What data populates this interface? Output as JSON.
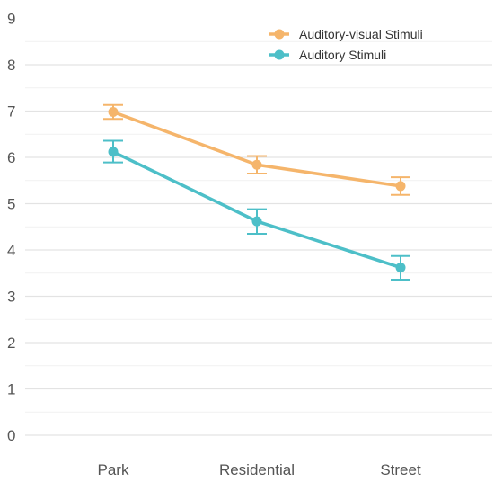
{
  "chart_data": {
    "type": "line",
    "categories": [
      "Park",
      "Residential",
      "Street"
    ],
    "ylim": [
      0,
      9
    ],
    "yticks": [
      0,
      1,
      2,
      3,
      4,
      5,
      6,
      7,
      8,
      9
    ],
    "grid": true,
    "legend_position": "top-right",
    "series": [
      {
        "name": "Auditory-visual Stimuli",
        "color": "#F5B56B",
        "values": [
          6.98,
          5.84,
          5.38
        ],
        "error": [
          [
            6.83,
            7.13
          ],
          [
            5.65,
            6.03
          ],
          [
            5.19,
            5.57
          ]
        ]
      },
      {
        "name": "Auditory Stimuli",
        "color": "#4DBFC8",
        "values": [
          6.12,
          4.62,
          3.62
        ],
        "error": [
          [
            5.89,
            6.36
          ],
          [
            4.35,
            4.88
          ],
          [
            3.36,
            3.87
          ]
        ]
      }
    ]
  }
}
